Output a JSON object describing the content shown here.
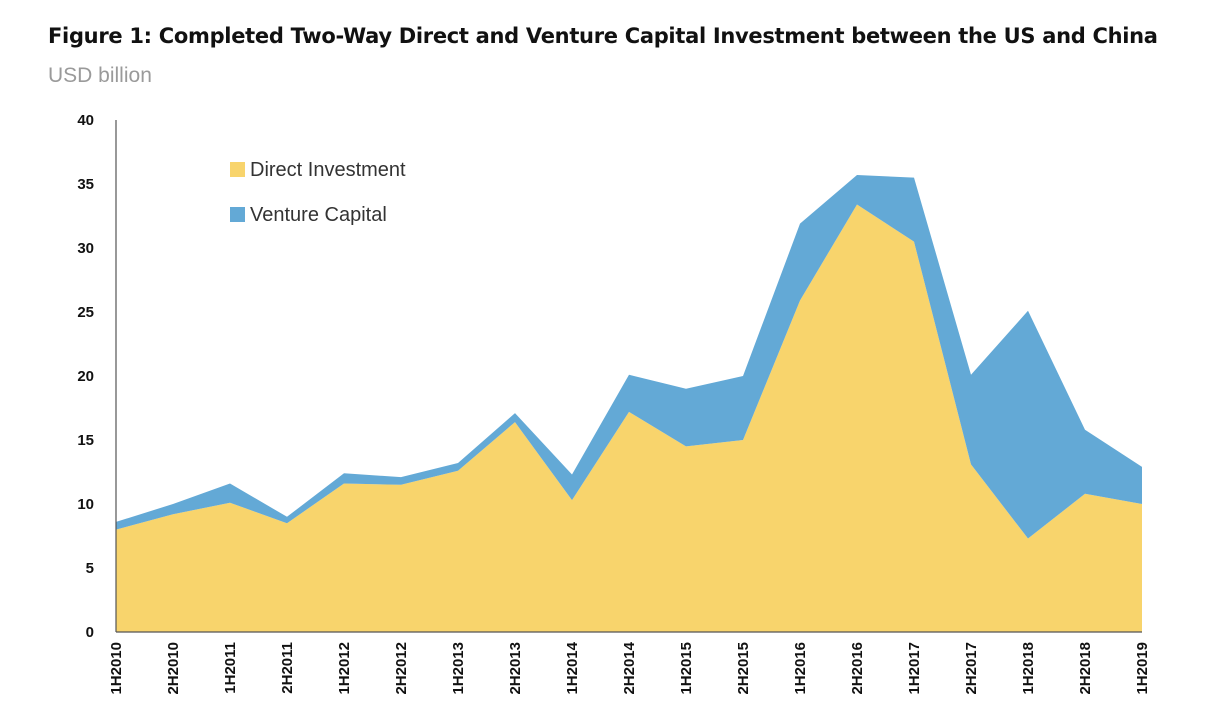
{
  "chart_data": {
    "type": "area",
    "stacked": true,
    "title": "Figure 1: Completed Two-Way Direct and Venture Capital Investment between the US and China",
    "subtitle": "USD billion",
    "categories": [
      "1H2010",
      "2H2010",
      "1H2011",
      "2H2011",
      "1H2012",
      "2H2012",
      "1H2013",
      "2H2013",
      "1H2014",
      "2H2014",
      "1H2015",
      "2H2015",
      "1H2016",
      "2H2016",
      "1H2017",
      "2H2017",
      "1H2018",
      "2H2018",
      "1H2019"
    ],
    "ylim": [
      0,
      40
    ],
    "yticks": [
      0,
      5,
      10,
      15,
      20,
      25,
      30,
      35,
      40
    ],
    "xlabel": "",
    "ylabel": "",
    "grid": false,
    "legend_position": "top-left",
    "series": [
      {
        "name": "Direct Investment",
        "color": "#f8d46c",
        "values": [
          8.0,
          9.2,
          10.1,
          8.5,
          11.6,
          11.5,
          12.6,
          16.4,
          10.3,
          17.2,
          14.5,
          15.0,
          25.9,
          33.4,
          30.5,
          13.1,
          7.3,
          10.8,
          10.0
        ]
      },
      {
        "name": "Venture Capital",
        "color": "#63a9d6",
        "values": [
          0.6,
          0.8,
          1.5,
          0.5,
          0.8,
          0.6,
          0.6,
          0.7,
          2.0,
          2.9,
          4.5,
          5.0,
          6.0,
          2.3,
          5.0,
          7.0,
          17.8,
          5.0,
          2.9
        ]
      }
    ]
  }
}
